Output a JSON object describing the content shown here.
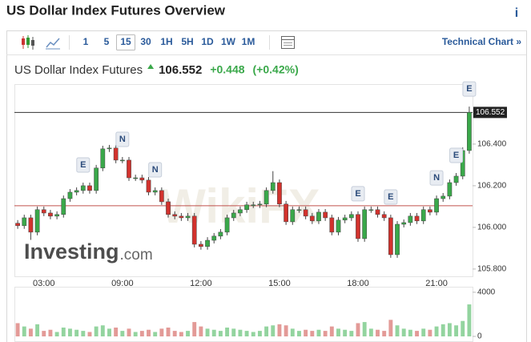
{
  "header": {
    "title": "US Dollar Index Futures Overview",
    "info_icon": "i"
  },
  "toolbar": {
    "timeframes": [
      "1",
      "5",
      "15",
      "30",
      "1H",
      "5H",
      "1D",
      "1W",
      "1M"
    ],
    "active": "15",
    "technical_chart": "Technical Chart »"
  },
  "quote": {
    "name": "US Dollar Index Futures",
    "price": "106.552",
    "change": "+0.448",
    "change_percent": "(+0.42%)"
  },
  "watermarks": {
    "investing": "Investing",
    "com": ".com",
    "wikifx": "WikiFX"
  },
  "chart_data": {
    "type": "candlestick",
    "categories": [
      null,
      null,
      null,
      null,
      "03:00",
      null,
      null,
      null,
      null,
      null,
      null,
      null,
      null,
      null,
      null,
      null,
      "09:00",
      null,
      null,
      null,
      null,
      null,
      null,
      null,
      null,
      null,
      null,
      null,
      "12:00",
      null,
      null,
      null,
      null,
      null,
      null,
      null,
      null,
      null,
      null,
      null,
      "15:00",
      null,
      null,
      null,
      null,
      null,
      null,
      null,
      null,
      null,
      null,
      null,
      "18:00",
      null,
      null,
      null,
      null,
      null,
      null,
      null,
      null,
      null,
      null,
      null,
      "21:00",
      null,
      null,
      null,
      null,
      null
    ],
    "open": [
      106.02,
      106.008,
      106.046,
      105.977,
      106.085,
      106.069,
      106.054,
      106.062,
      106.138,
      106.169,
      106.177,
      106.2,
      106.177,
      106.285,
      106.377,
      106.381,
      106.323,
      106.323,
      106.238,
      106.238,
      106.227,
      106.169,
      106.177,
      106.123,
      106.062,
      106.054,
      106.046,
      106.054,
      105.919,
      105.908,
      105.938,
      105.958,
      105.977,
      106.046,
      106.069,
      106.085,
      106.108,
      106.108,
      106.112,
      106.177,
      106.215,
      106.112,
      106.027,
      106.085,
      106.085,
      106.054,
      106.031,
      106.073,
      106.046,
      105.977,
      106.035,
      106.046,
      106.062,
      105.946,
      106.085,
      106.085,
      106.062,
      106.046,
      105.869,
      106.015,
      106.023,
      106.054,
      106.031,
      106.085,
      106.073,
      106.138,
      106.15,
      106.215,
      106.246,
      106.369
    ],
    "high": [
      106.035,
      106.061,
      106.061,
      106.1,
      106.1,
      106.084,
      106.077,
      106.153,
      106.184,
      106.192,
      106.215,
      106.215,
      106.3,
      106.392,
      106.396,
      106.396,
      106.338,
      106.338,
      106.253,
      106.253,
      106.242,
      106.192,
      106.192,
      106.138,
      106.077,
      106.069,
      106.069,
      106.069,
      105.934,
      105.953,
      105.973,
      105.992,
      106.061,
      106.084,
      106.1,
      106.123,
      106.123,
      106.127,
      106.192,
      106.27,
      106.23,
      106.127,
      106.1,
      106.1,
      106.1,
      106.069,
      106.088,
      106.088,
      106.061,
      106.05,
      106.061,
      106.077,
      106.077,
      106.1,
      106.1,
      106.1,
      106.077,
      106.061,
      106.03,
      106.038,
      106.069,
      106.069,
      106.1,
      106.1,
      106.153,
      106.165,
      106.23,
      106.261,
      106.384,
      106.58
    ],
    "low": [
      105.993,
      105.993,
      105.94,
      105.962,
      106.054,
      106.039,
      106.039,
      106.047,
      106.123,
      106.154,
      106.162,
      106.162,
      106.162,
      106.27,
      106.362,
      106.308,
      106.308,
      106.223,
      106.223,
      106.212,
      106.154,
      106.154,
      106.108,
      106.047,
      106.039,
      106.031,
      106.031,
      105.904,
      105.893,
      105.893,
      105.923,
      105.943,
      105.962,
      106.031,
      106.054,
      106.07,
      106.093,
      106.093,
      106.097,
      106.162,
      106.097,
      106.012,
      106.012,
      106.07,
      106.039,
      106.016,
      106.016,
      106.031,
      105.962,
      105.962,
      106.02,
      106.031,
      105.931,
      105.931,
      106.07,
      106.047,
      106.031,
      105.854,
      105.854,
      106.0,
      106.008,
      106.016,
      106.016,
      106.058,
      106.058,
      106.123,
      106.135,
      106.2,
      106.231,
      106.354
    ],
    "close": [
      106.008,
      106.046,
      105.977,
      106.085,
      106.069,
      106.054,
      106.062,
      106.138,
      106.169,
      106.177,
      106.2,
      106.177,
      106.285,
      106.377,
      106.381,
      106.323,
      106.323,
      106.238,
      106.238,
      106.227,
      106.169,
      106.177,
      106.123,
      106.062,
      106.054,
      106.046,
      106.054,
      105.919,
      105.908,
      105.938,
      105.958,
      105.977,
      106.046,
      106.069,
      106.085,
      106.108,
      106.108,
      106.112,
      106.177,
      106.215,
      106.112,
      106.027,
      106.085,
      106.085,
      106.054,
      106.031,
      106.073,
      106.046,
      105.977,
      106.035,
      106.046,
      106.062,
      105.946,
      106.085,
      106.085,
      106.062,
      106.046,
      105.869,
      106.015,
      106.023,
      106.054,
      106.031,
      106.085,
      106.073,
      106.138,
      106.15,
      106.215,
      106.246,
      106.369,
      106.552
    ],
    "up_color": "#3aa84a",
    "down_color": "#d2322d",
    "ylim": [
      105.765,
      106.688
    ],
    "yticks": [
      {
        "value": 105.8,
        "label": "105.800"
      },
      {
        "value": 106.0,
        "label": "106.000"
      },
      {
        "value": 106.2,
        "label": "106.200"
      },
      {
        "value": 106.4,
        "label": "106.400"
      }
    ],
    "previous_close": 106.104,
    "events": [
      {
        "index": 10,
        "label": "E"
      },
      {
        "index": 16,
        "label": "N"
      },
      {
        "index": 21,
        "label": "N"
      },
      {
        "index": 52,
        "label": "E"
      },
      {
        "index": 57,
        "label": "E"
      },
      {
        "index": 64,
        "label": "N"
      },
      {
        "index": 67,
        "label": "E"
      },
      {
        "index": 69,
        "label": "E"
      }
    ],
    "volume": {
      "values": [
        1200,
        900,
        700,
        1100,
        500,
        600,
        400,
        800,
        700,
        600,
        500,
        400,
        900,
        1000,
        700,
        800,
        500,
        700,
        400,
        500,
        600,
        400,
        700,
        800,
        500,
        400,
        500,
        1300,
        900,
        700,
        600,
        500,
        800,
        700,
        600,
        500,
        400,
        500,
        900,
        1000,
        1100,
        1000,
        700,
        500,
        600,
        500,
        600,
        500,
        900,
        700,
        600,
        500,
        1200,
        1300,
        700,
        600,
        500,
        1500,
        1000,
        700,
        600,
        500,
        700,
        600,
        900,
        1100,
        1200,
        1000,
        1400,
        2900
      ],
      "up_color": "#93d49f",
      "down_color": "#e39a97",
      "ylim": [
        0,
        4500
      ],
      "yticks": [
        0,
        4000
      ]
    }
  }
}
